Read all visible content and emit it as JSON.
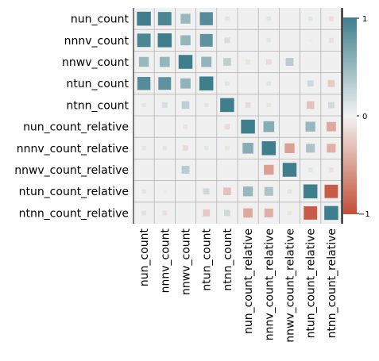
{
  "chart_data": {
    "type": "heatmap",
    "title": "",
    "xlabel": "",
    "ylabel": "",
    "variables": [
      "nun_count",
      "nnnv_count",
      "nnwv_count",
      "ntun_count",
      "ntnn_count",
      "nun_count_relative",
      "nnnv_count_relative",
      "nnwv_count_relative",
      "ntun_count_relative",
      "ntnn_count_relative"
    ],
    "matrix": [
      [
        1.0,
        0.93,
        0.5,
        0.88,
        0.1,
        0.0,
        0.1,
        0.0,
        0.1,
        -0.12
      ],
      [
        0.93,
        1.0,
        0.52,
        0.83,
        0.16,
        0.0,
        0.1,
        0.0,
        -0.05,
        -0.12
      ],
      [
        0.5,
        0.52,
        1.0,
        0.54,
        0.3,
        -0.1,
        -0.15,
        0.32,
        0.0,
        0.0
      ],
      [
        0.88,
        0.83,
        0.54,
        1.0,
        0.1,
        0.0,
        0.1,
        0.0,
        0.2,
        -0.25
      ],
      [
        0.1,
        0.16,
        0.3,
        0.1,
        1.0,
        -0.15,
        -0.1,
        0.0,
        -0.3,
        0.2
      ],
      [
        0.0,
        0.0,
        -0.1,
        0.0,
        -0.15,
        1.0,
        0.6,
        0.0,
        0.5,
        -0.45
      ],
      [
        0.1,
        0.1,
        -0.15,
        0.1,
        -0.1,
        0.6,
        1.0,
        -0.5,
        0.4,
        -0.4
      ],
      [
        0.0,
        0.0,
        0.32,
        0.0,
        0.0,
        0.0,
        -0.5,
        1.0,
        0.1,
        -0.1
      ],
      [
        0.1,
        -0.05,
        0.0,
        0.2,
        -0.3,
        0.5,
        0.4,
        0.1,
        1.0,
        -0.92
      ],
      [
        -0.12,
        -0.12,
        0.0,
        -0.25,
        0.2,
        -0.45,
        -0.4,
        -0.1,
        -0.92,
        1.0
      ]
    ],
    "colorbar": {
      "ticks": [
        "1",
        "0",
        "−1"
      ],
      "min": -1,
      "max": 1,
      "color_negative": "#c44e36",
      "color_neutral": "#f2f2f2",
      "color_positive": "#3e7e8d"
    },
    "grid": true,
    "legend": "colorbar-right",
    "background": "#f0f0f0",
    "grid_color": "#b4b4b4"
  }
}
